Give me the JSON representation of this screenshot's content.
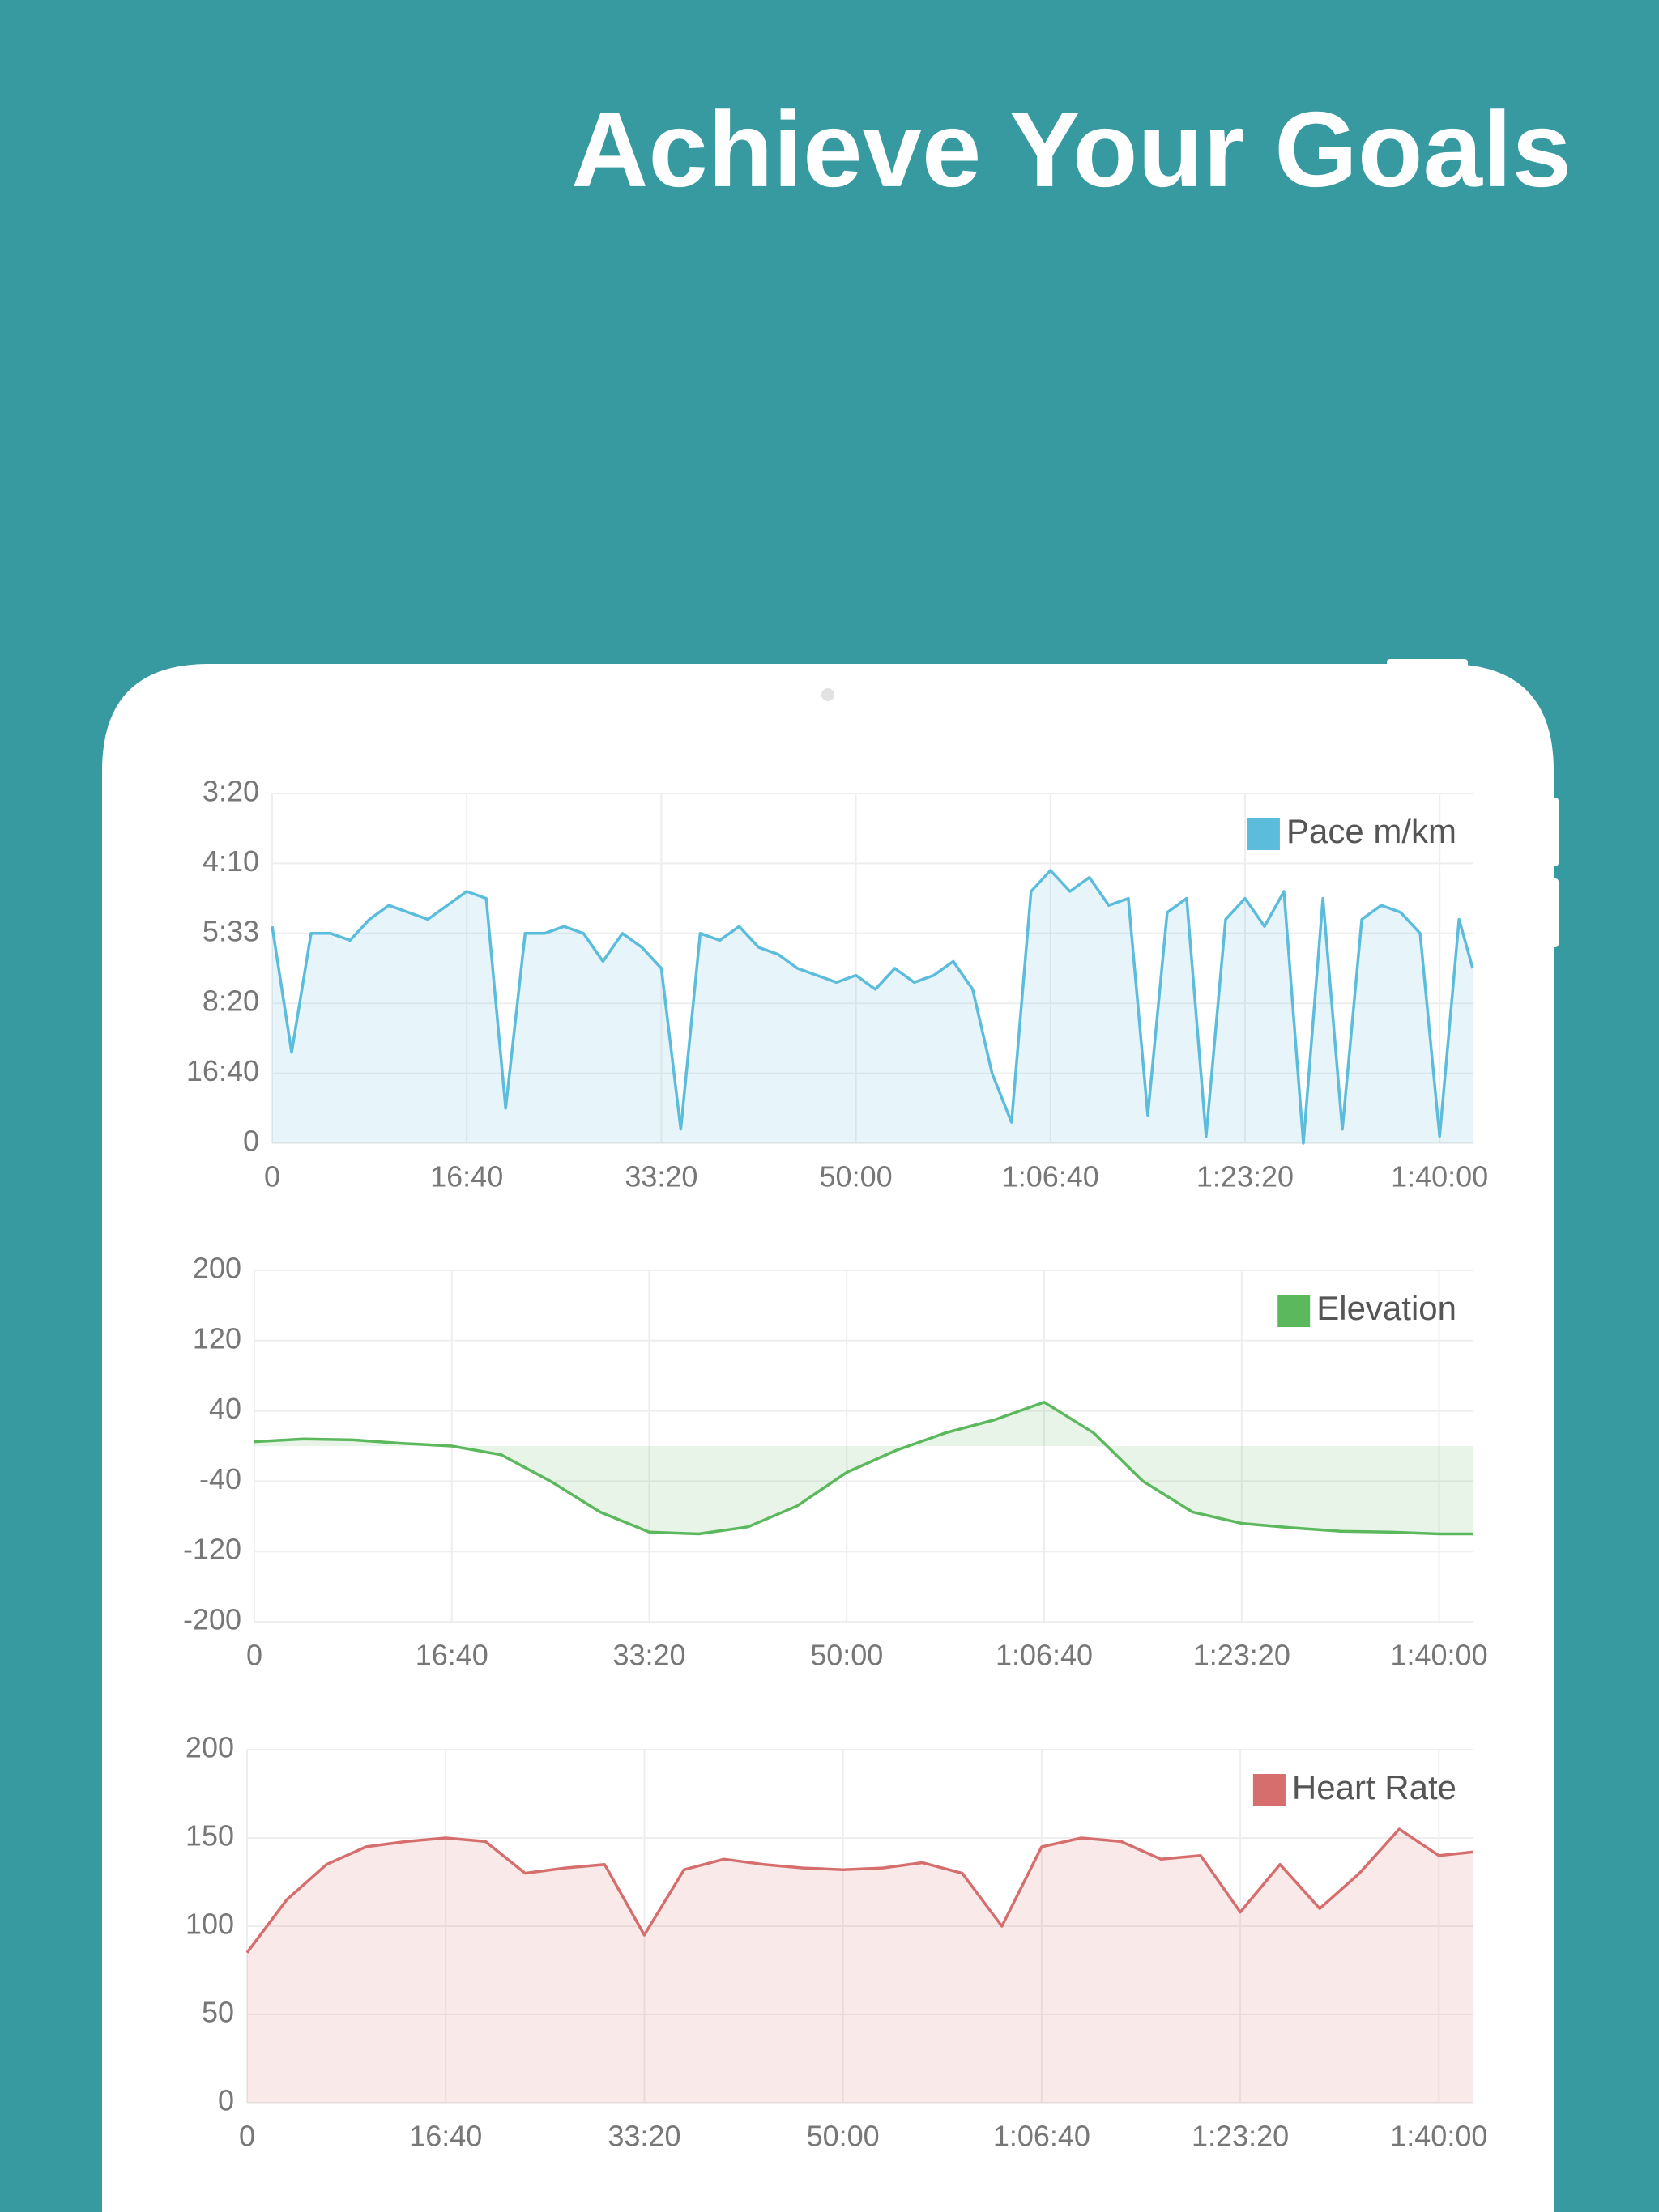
{
  "header": {
    "title": "Achieve Your Goals"
  },
  "chart_data": [
    {
      "type": "line",
      "x": [
        0,
        100,
        200,
        300,
        400,
        500,
        600,
        700,
        800,
        900,
        1000,
        1100,
        1200,
        1300,
        1400,
        1500,
        1600,
        1700,
        1800,
        1900,
        2000,
        2100,
        2200,
        2300,
        2400,
        2500,
        2600,
        2700,
        2800,
        2900,
        3000,
        3100,
        3200,
        3300,
        3400,
        3500,
        3600,
        3700,
        3800,
        3900,
        4000,
        4100,
        4200,
        4300,
        4400,
        4500,
        4600,
        4700,
        4800,
        4900,
        5000,
        5100,
        5200,
        5300,
        5400,
        5500,
        5600,
        5700,
        5800,
        5900,
        6000,
        6100,
        6170
      ],
      "series": [
        {
          "name": "Pace m/km",
          "color": "#5bbcdc",
          "values": [
            3.1,
            1.3,
            3.0,
            3.0,
            2.9,
            3.2,
            3.4,
            3.3,
            3.2,
            3.4,
            3.6,
            3.5,
            0.5,
            3.0,
            3.0,
            3.1,
            3.0,
            2.6,
            3.0,
            2.8,
            2.5,
            0.2,
            3.0,
            2.9,
            3.1,
            2.8,
            2.7,
            2.5,
            2.4,
            2.3,
            2.4,
            2.2,
            2.5,
            2.3,
            2.4,
            2.6,
            2.2,
            1.0,
            0.3,
            3.6,
            3.9,
            3.6,
            3.8,
            3.4,
            3.5,
            0.4,
            3.3,
            3.5,
            0.1,
            3.2,
            3.5,
            3.1,
            3.6,
            0.0,
            3.5,
            0.2,
            3.2,
            3.4,
            3.3,
            3.0,
            0.1,
            3.2,
            2.5
          ]
        }
      ],
      "xlim": [
        0,
        6170
      ],
      "xticks": [
        0,
        {
          "value": 1000,
          "label": "16:40"
        },
        {
          "value": 2000,
          "label": "33:20"
        },
        {
          "value": 3000,
          "label": "50:00"
        },
        {
          "value": 4000,
          "label": "1:06:40"
        },
        {
          "value": 5000,
          "label": "1:23:20"
        },
        {
          "value": 6000,
          "label": "1:40:00"
        }
      ],
      "ylim": [
        0,
        5
      ],
      "yticks": [
        0,
        {
          "value": 1,
          "label": "16:40"
        },
        {
          "value": 2,
          "label": "8:20"
        },
        {
          "value": 3,
          "label": "5:33"
        },
        {
          "value": 4,
          "label": "4:10"
        },
        {
          "value": 5,
          "label": "3:20"
        }
      ],
      "grid": true,
      "legend": "top-right"
    },
    {
      "type": "line",
      "x": [
        0,
        250,
        500,
        750,
        1000,
        1250,
        1500,
        1750,
        2000,
        2250,
        2500,
        2750,
        3000,
        3250,
        3500,
        3750,
        4000,
        4250,
        4500,
        4750,
        5000,
        5250,
        5500,
        5750,
        6000,
        6170
      ],
      "series": [
        {
          "name": "Elevation",
          "color": "#5cb85c",
          "values": [
            5,
            8,
            7,
            3,
            0,
            -10,
            -40,
            -75,
            -98,
            -100,
            -92,
            -68,
            -30,
            -5,
            15,
            30,
            50,
            15,
            -40,
            -75,
            -88,
            -93,
            -97,
            -98,
            -100,
            -100
          ]
        }
      ],
      "xlim": [
        0,
        6170
      ],
      "xticks": [
        0,
        {
          "value": 1000,
          "label": "16:40"
        },
        {
          "value": 2000,
          "label": "33:20"
        },
        {
          "value": 3000,
          "label": "50:00"
        },
        {
          "value": 4000,
          "label": "1:06:40"
        },
        {
          "value": 5000,
          "label": "1:23:20"
        },
        {
          "value": 6000,
          "label": "1:40:00"
        }
      ],
      "ylim": [
        -200,
        200
      ],
      "yticks": [
        -200,
        -120,
        -40,
        40,
        120,
        200
      ],
      "grid": true,
      "legend": "top-right"
    },
    {
      "type": "line",
      "x": [
        0,
        200,
        400,
        600,
        800,
        1000,
        1200,
        1400,
        1600,
        1800,
        2000,
        2200,
        2400,
        2600,
        2800,
        3000,
        3200,
        3400,
        3600,
        3800,
        4000,
        4200,
        4400,
        4600,
        4800,
        5000,
        5200,
        5400,
        5600,
        5800,
        6000,
        6170
      ],
      "series": [
        {
          "name": "Heart Rate",
          "color": "#d66e6e",
          "values": [
            85,
            115,
            135,
            145,
            148,
            150,
            148,
            130,
            133,
            135,
            95,
            132,
            138,
            135,
            133,
            132,
            133,
            136,
            130,
            100,
            145,
            150,
            148,
            138,
            140,
            108,
            135,
            110,
            130,
            155,
            140,
            142
          ]
        }
      ],
      "xlim": [
        0,
        6170
      ],
      "xticks": [
        0,
        {
          "value": 1000,
          "label": "16:40"
        },
        {
          "value": 2000,
          "label": "33:20"
        },
        {
          "value": 3000,
          "label": "50:00"
        },
        {
          "value": 4000,
          "label": "1:06:40"
        },
        {
          "value": 5000,
          "label": "1:23:20"
        },
        {
          "value": 6000,
          "label": "1:40:00"
        }
      ],
      "ylim": [
        0,
        200
      ],
      "yticks": [
        0,
        50,
        100,
        150,
        200
      ],
      "grid": true,
      "legend": "top-right"
    }
  ]
}
